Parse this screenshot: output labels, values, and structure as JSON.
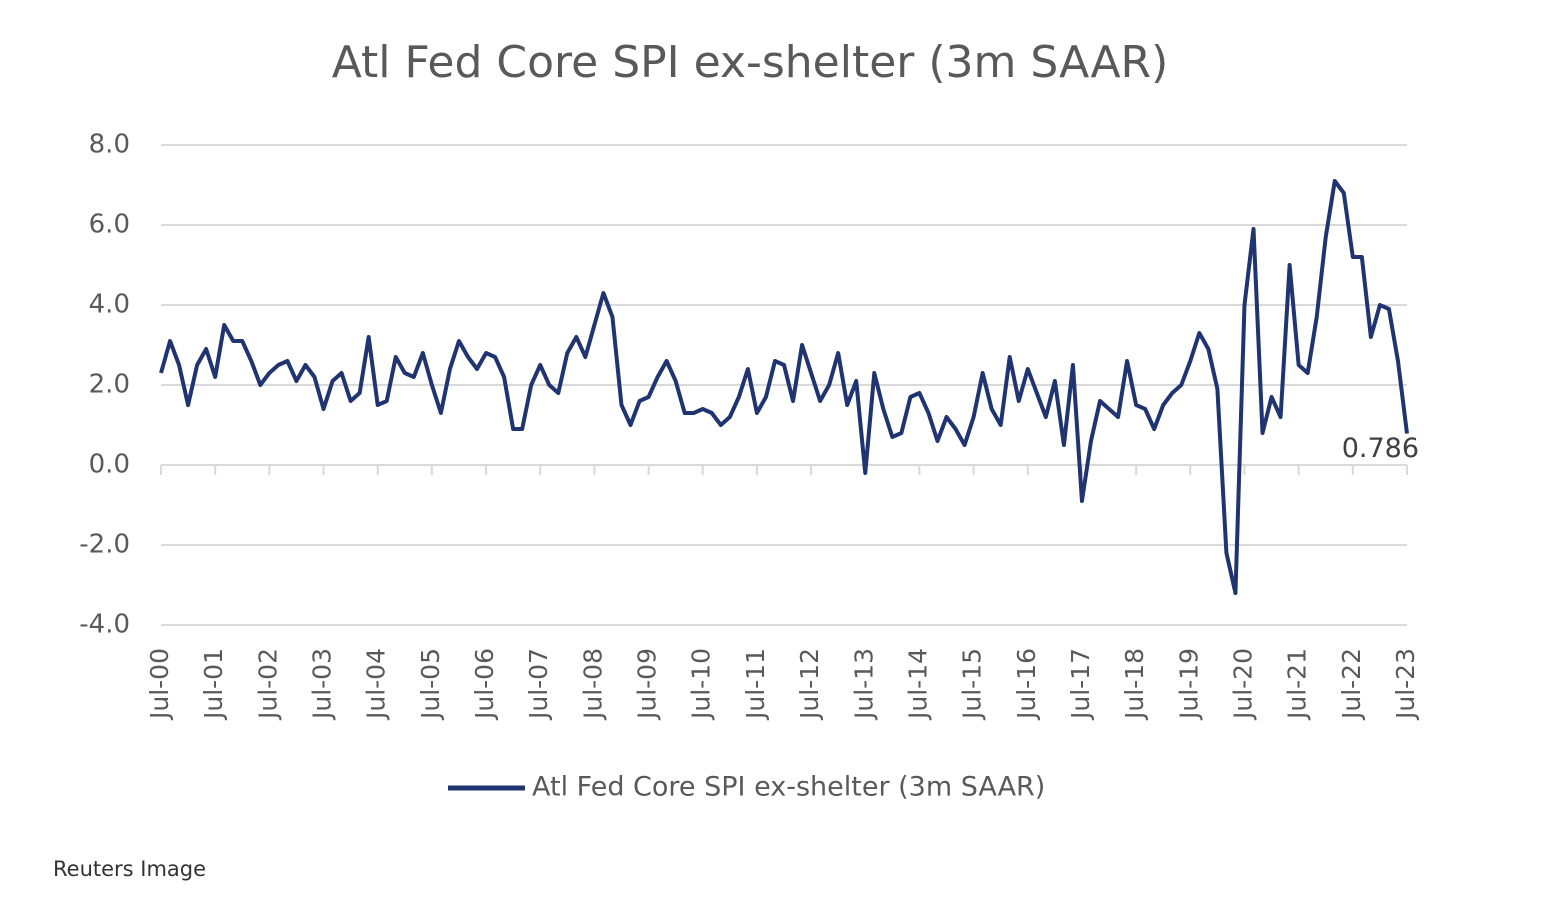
{
  "chart_data": {
    "type": "line",
    "title": "Atl Fed Core SPI ex-shelter (3m SAAR)",
    "categories": [
      "Jul-00",
      null,
      null,
      null,
      null,
      null,
      "Jul-01",
      null,
      null,
      null,
      null,
      null,
      "Jul-02",
      null,
      null,
      null,
      null,
      null,
      "Jul-03",
      null,
      null,
      null,
      null,
      null,
      "Jul-04",
      null,
      null,
      null,
      null,
      null,
      "Jul-05",
      null,
      null,
      null,
      null,
      null,
      "Jul-06",
      null,
      null,
      null,
      null,
      null,
      "Jul-07",
      null,
      null,
      null,
      null,
      null,
      "Jul-08",
      null,
      null,
      null,
      null,
      null,
      "Jul-09",
      null,
      null,
      null,
      null,
      null,
      "Jul-10",
      null,
      null,
      null,
      null,
      null,
      "Jul-11",
      null,
      null,
      null,
      null,
      null,
      "Jul-12",
      null,
      null,
      null,
      null,
      null,
      "Jul-13",
      null,
      null,
      null,
      null,
      null,
      "Jul-14",
      null,
      null,
      null,
      null,
      null,
      "Jul-15",
      null,
      null,
      null,
      null,
      null,
      "Jul-16",
      null,
      null,
      null,
      null,
      null,
      "Jul-17",
      null,
      null,
      null,
      null,
      null,
      "Jul-18",
      null,
      null,
      null,
      null,
      null,
      "Jul-19",
      null,
      null,
      null,
      null,
      null,
      "Jul-20",
      null,
      null,
      null,
      null,
      null,
      "Jul-21",
      null,
      null,
      null,
      null,
      null,
      "Jul-22",
      null,
      null,
      null,
      null,
      null,
      "Jul-23"
    ],
    "series": [
      {
        "name": "Atl Fed Core SPI ex-shelter (3m SAAR)",
        "color": "#1f3470",
        "values": [
          2.3,
          3.1,
          2.5,
          1.5,
          2.5,
          2.9,
          2.2,
          3.5,
          3.1,
          3.1,
          2.6,
          2.0,
          2.3,
          2.5,
          2.6,
          2.1,
          2.5,
          2.2,
          1.4,
          2.1,
          2.3,
          1.6,
          1.8,
          3.2,
          1.5,
          1.6,
          2.7,
          2.3,
          2.2,
          2.8,
          2.0,
          1.3,
          2.4,
          3.1,
          2.7,
          2.4,
          2.8,
          2.7,
          2.2,
          0.9,
          0.9,
          2.0,
          2.5,
          2.0,
          1.8,
          2.8,
          3.2,
          2.7,
          3.5,
          4.3,
          3.7,
          1.5,
          1.0,
          1.6,
          1.7,
          2.2,
          2.6,
          2.1,
          1.3,
          1.3,
          1.4,
          1.3,
          1.0,
          1.2,
          1.7,
          2.4,
          1.3,
          1.7,
          2.6,
          2.5,
          1.6,
          3.0,
          2.3,
          1.6,
          2.0,
          2.8,
          1.5,
          2.1,
          -0.2,
          2.3,
          1.4,
          0.7,
          0.8,
          1.7,
          1.8,
          1.3,
          0.6,
          1.2,
          0.9,
          0.5,
          1.2,
          2.3,
          1.4,
          1.0,
          2.7,
          1.6,
          2.4,
          1.8,
          1.2,
          2.1,
          0.5,
          2.5,
          -0.9,
          0.6,
          1.6,
          1.4,
          1.2,
          2.6,
          1.5,
          1.4,
          0.9,
          1.5,
          1.8,
          2.0,
          2.6,
          3.3,
          2.9,
          1.9,
          -2.2,
          -3.2,
          4.0,
          5.9,
          0.8,
          1.7,
          1.2,
          5.0,
          2.5,
          2.3,
          3.7,
          5.7,
          7.1,
          6.8,
          5.2,
          5.2,
          3.2,
          4.0,
          3.9,
          2.6,
          0.786
        ]
      }
    ],
    "ylim": [
      -4,
      8
    ],
    "yticks": [
      {
        "value": -4,
        "label": "-4.0"
      },
      {
        "value": -2,
        "label": "-2.0"
      },
      {
        "value": 0,
        "label": "0.0"
      },
      {
        "value": 2,
        "label": "2.0"
      },
      {
        "value": 4,
        "label": "4.0"
      },
      {
        "value": 6,
        "label": "6.0"
      },
      {
        "value": 8,
        "label": "8.0"
      }
    ],
    "grid": true,
    "legend": "bottom",
    "source": "Reuters Image"
  }
}
